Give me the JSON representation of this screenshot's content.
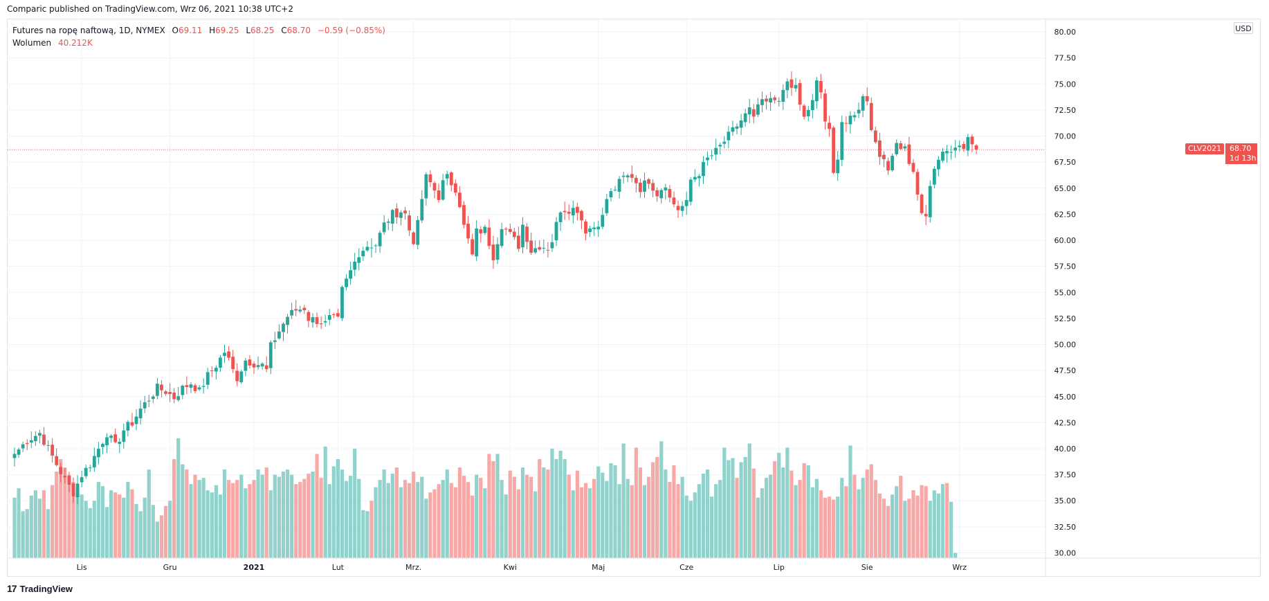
{
  "caption": "Comparic published on TradingView.com, Wrz 06, 2021 10:38 UTC+2",
  "footer": {
    "brand": "TradingView",
    "mark": "17"
  },
  "legend": {
    "symbol": "Futures na ropę naftową, 1D, NYMEX",
    "o_label": "O",
    "o_value": "69.11",
    "h_label": "H",
    "h_value": "69.25",
    "l_label": "L",
    "l_value": "68.25",
    "c_label": "C",
    "c_value": "68.70",
    "change": "−0.59 (−0.85%)",
    "volume_label": "Wolumen",
    "volume_value": "40.212K"
  },
  "axis_currency": "USD",
  "last_price": {
    "symbol": "CLV2021",
    "price": "68.70",
    "countdown": "1d 13h"
  },
  "colors": {
    "up": "#26a69a",
    "down": "#ef5350",
    "up_vol": "#92d2cc",
    "down_vol": "#f7a9a7",
    "grid": "#f0f3fa"
  },
  "chart_data": {
    "type": "candlestick",
    "title": "Futures na ropę naftową, 1D, NYMEX",
    "y_ticks": [
      "30.00",
      "32.50",
      "35.00",
      "37.50",
      "40.00",
      "42.50",
      "45.00",
      "47.50",
      "50.00",
      "52.50",
      "55.00",
      "57.50",
      "60.00",
      "62.50",
      "65.00",
      "67.50",
      "70.00",
      "72.50",
      "75.00",
      "77.50",
      "80.00"
    ],
    "ylim": [
      29.5,
      81.2
    ],
    "x_labels": [
      {
        "label": "Lis",
        "index": 16,
        "bold": false
      },
      {
        "label": "Gru",
        "index": 37,
        "bold": false
      },
      {
        "label": "2021",
        "index": 57,
        "bold": true
      },
      {
        "label": "Lut",
        "index": 77,
        "bold": false
      },
      {
        "label": "Mrz.",
        "index": 95,
        "bold": false
      },
      {
        "label": "Kwi",
        "index": 118,
        "bold": false
      },
      {
        "label": "Maj",
        "index": 139,
        "bold": false
      },
      {
        "label": "Cze",
        "index": 160,
        "bold": false
      },
      {
        "label": "Lip",
        "index": 182,
        "bold": false
      },
      {
        "label": "Sie",
        "index": 203,
        "bold": false
      },
      {
        "label": "Wrz",
        "index": 225,
        "bold": false
      }
    ],
    "close_anchors": [
      [
        0,
        39.5
      ],
      [
        3,
        40.8
      ],
      [
        6,
        41.5
      ],
      [
        8,
        40.0
      ],
      [
        10,
        38.5
      ],
      [
        12,
        37.0
      ],
      [
        14,
        35.8
      ],
      [
        16,
        37.5
      ],
      [
        18,
        38.5
      ],
      [
        20,
        40.0
      ],
      [
        22,
        41.5
      ],
      [
        24,
        40.2
      ],
      [
        26,
        41.8
      ],
      [
        28,
        42.5
      ],
      [
        30,
        43.8
      ],
      [
        32,
        44.8
      ],
      [
        34,
        45.8
      ],
      [
        36,
        45.5
      ],
      [
        38,
        44.9
      ],
      [
        40,
        45.8
      ],
      [
        42,
        46.3
      ],
      [
        44,
        45.5
      ],
      [
        46,
        47.0
      ],
      [
        48,
        48.0
      ],
      [
        50,
        49.3
      ],
      [
        51,
        48.5
      ],
      [
        52,
        47.5
      ],
      [
        53,
        46.8
      ],
      [
        55,
        48.5
      ],
      [
        57,
        48.2
      ],
      [
        59,
        48.0
      ],
      [
        60,
        47.5
      ],
      [
        61,
        49.8
      ],
      [
        63,
        51.3
      ],
      [
        65,
        52.7
      ],
      [
        67,
        53.3
      ],
      [
        69,
        53.5
      ],
      [
        70,
        52.5
      ],
      [
        72,
        52.3
      ],
      [
        74,
        52.0
      ],
      [
        75,
        52.5
      ],
      [
        77,
        52.3
      ],
      [
        78,
        55.2
      ],
      [
        80,
        57.0
      ],
      [
        82,
        58.8
      ],
      [
        84,
        59.5
      ],
      [
        86,
        59.6
      ],
      [
        88,
        61.5
      ],
      [
        90,
        62.5
      ],
      [
        92,
        62.8
      ],
      [
        93,
        62.5
      ],
      [
        94,
        61.0
      ],
      [
        95,
        60.0
      ],
      [
        96,
        61.5
      ],
      [
        97,
        64.0
      ],
      [
        98,
        66.0
      ],
      [
        99,
        65.5
      ],
      [
        100,
        64.8
      ],
      [
        101,
        64.2
      ],
      [
        102,
        65.5
      ],
      [
        103,
        66.0
      ],
      [
        105,
        65.0
      ],
      [
        106,
        63.5
      ],
      [
        107,
        61.3
      ],
      [
        108,
        60.0
      ],
      [
        109,
        58.5
      ],
      [
        110,
        60.8
      ],
      [
        112,
        61.0
      ],
      [
        114,
        58.5
      ],
      [
        116,
        61.5
      ],
      [
        118,
        60.5
      ],
      [
        120,
        59.5
      ],
      [
        121,
        61.5
      ],
      [
        123,
        59.0
      ],
      [
        125,
        59.5
      ],
      [
        127,
        59.3
      ],
      [
        128,
        60.0
      ],
      [
        130,
        63.0
      ],
      [
        132,
        63.0
      ],
      [
        134,
        63.0
      ],
      [
        136,
        61.0
      ],
      [
        138,
        61.3
      ],
      [
        140,
        62.2
      ],
      [
        141,
        64.0
      ],
      [
        143,
        65.0
      ],
      [
        145,
        66.0
      ],
      [
        147,
        66.2
      ],
      [
        149,
        65.0
      ],
      [
        151,
        65.8
      ],
      [
        153,
        64.5
      ],
      [
        155,
        65.5
      ],
      [
        156,
        64.0
      ],
      [
        158,
        63.0
      ],
      [
        160,
        63.5
      ],
      [
        161,
        65.8
      ],
      [
        163,
        66.5
      ],
      [
        165,
        67.8
      ],
      [
        167,
        68.5
      ],
      [
        169,
        69.5
      ],
      [
        171,
        70.5
      ],
      [
        173,
        71.5
      ],
      [
        175,
        72.5
      ],
      [
        176,
        71.5
      ],
      [
        177,
        73.0
      ],
      [
        179,
        73.2
      ],
      [
        181,
        73.5
      ],
      [
        183,
        74.0
      ],
      [
        184,
        75.2
      ],
      [
        185,
        74.5
      ],
      [
        186,
        75.0
      ],
      [
        187,
        72.8
      ],
      [
        188,
        71.6
      ],
      [
        189,
        72.5
      ],
      [
        190,
        73.5
      ],
      [
        191,
        75.0
      ],
      [
        192,
        74.0
      ],
      [
        193,
        71.8
      ],
      [
        194,
        70.8
      ],
      [
        195,
        66.5
      ],
      [
        196,
        67.3
      ],
      [
        197,
        71.2
      ],
      [
        199,
        71.8
      ],
      [
        201,
        72.8
      ],
      [
        202,
        73.8
      ],
      [
        203,
        73.5
      ],
      [
        204,
        71.0
      ],
      [
        205,
        69.0
      ],
      [
        206,
        68.0
      ],
      [
        207,
        68.2
      ],
      [
        208,
        66.8
      ],
      [
        209,
        68.4
      ],
      [
        210,
        69.2
      ],
      [
        212,
        68.8
      ],
      [
        213,
        67.5
      ],
      [
        214,
        66.2
      ],
      [
        215,
        64.3
      ],
      [
        216,
        62.7
      ],
      [
        217,
        62.0
      ],
      [
        218,
        65.5
      ],
      [
        219,
        67.0
      ],
      [
        220,
        67.8
      ],
      [
        222,
        68.5
      ],
      [
        224,
        69.2
      ],
      [
        226,
        69.0
      ],
      [
        227,
        70.0
      ],
      [
        228,
        69.2
      ],
      [
        229,
        68.7
      ]
    ],
    "volume_lines": {
      "price_range": [
        29.5,
        42.6
      ],
      "levels": [
        35.3,
        36.2,
        34.0,
        34.2,
        35.5,
        36.0,
        35.2,
        36.0,
        34.2,
        36.5,
        37.8,
        39.0,
        38.2,
        37.5,
        36.8,
        36.0,
        35.6,
        35.0,
        34.3,
        35.0,
        36.8,
        36.4,
        34.4,
        36.0,
        35.8,
        35.6,
        35.3,
        36.8,
        36.1,
        34.7,
        34.0,
        35.3,
        38.0,
        34.6,
        33.0,
        33.6,
        34.5,
        35.0,
        39.0,
        41.0,
        38.5,
        38.0,
        36.6,
        37.5,
        37.0,
        37.2,
        36.0,
        35.8,
        36.5,
        35.6,
        38.0,
        37.0,
        36.7,
        37.0,
        37.5,
        36.2,
        36.6,
        37.0,
        38.0,
        37.5,
        38.2,
        36.0,
        37.5,
        37.3,
        37.8,
        38.0,
        37.5,
        36.6,
        36.8,
        37.1,
        37.6,
        37.8,
        39.5,
        37.2,
        40.2,
        36.6,
        38.3,
        39.0,
        38.0,
        36.9,
        37.4,
        40.0,
        37.1,
        34.1,
        34.0,
        35.0,
        36.3,
        37.0,
        38.0,
        36.7,
        37.6,
        38.2,
        36.3,
        37.0,
        36.7,
        37.8,
        36.8,
        37.3,
        35.2,
        35.8,
        36.1,
        36.6,
        37.0,
        38.0,
        36.7,
        36.3,
        38.2,
        37.4,
        36.8,
        35.5,
        37.5,
        37.2,
        36.2,
        39.5,
        38.8,
        39.5,
        37.0,
        35.6,
        37.9,
        37.3,
        36.1,
        38.2,
        37.5,
        37.3,
        35.9,
        39.0,
        38.2,
        38.0,
        40.0,
        39.0,
        39.8,
        39.0,
        37.5,
        36.0,
        37.9,
        36.3,
        36.7,
        36.2,
        37.1,
        38.3,
        37.7,
        36.9,
        38.6,
        38.4,
        36.6,
        40.5,
        37.1,
        36.5,
        40.1,
        38.2,
        36.5,
        37.3,
        38.7,
        39.2,
        40.7,
        38.0,
        36.8,
        38.4,
        36.6,
        37.3,
        35.5,
        35.0,
        35.8,
        36.6,
        37.6,
        38.0,
        35.4,
        36.6,
        37.0,
        40.1,
        38.9,
        39.1,
        37.2,
        38.7,
        39.2,
        40.5,
        38.1,
        35.3,
        36.2,
        37.2,
        37.5,
        38.8,
        39.6,
        38.2,
        40.1,
        37.9,
        36.5,
        37.0,
        38.6,
        38.4,
        36.3,
        37.1,
        36.0,
        35.3,
        35.4,
        35.1,
        35.4,
        37.2,
        36.4,
        40.3,
        37.5,
        36.1,
        37.2,
        38.0,
        38.5,
        37.0,
        35.7,
        35.2,
        34.5,
        35.6,
        36.4,
        37.4,
        35.0,
        35.2,
        36.0,
        35.5,
        36.5,
        36.4,
        35.0,
        36.0,
        35.7,
        36.6,
        36.7,
        34.9,
        30.0
      ]
    }
  }
}
